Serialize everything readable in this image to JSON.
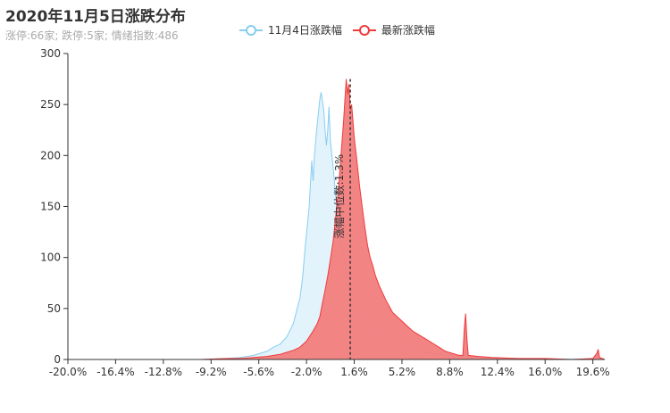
{
  "title": "2020年11月5日涨跌分布",
  "subtitle": "涨停:66家; 跌停:5家; 情绪指数:486",
  "colors": {
    "prev": "#87cef0",
    "prev_fill": "#dff2fb",
    "today": "#ee3b3b",
    "today_fill": "#f27d7d",
    "axis": "#333333",
    "median": "#333333"
  },
  "chart_data": {
    "type": "area",
    "title": "2020年11月5日涨跌分布",
    "xlim": [
      -20.0,
      20.5
    ],
    "ylim": [
      0,
      300
    ],
    "x_ticks": [
      "-20.0%",
      "-16.4%",
      "-12.8%",
      "-9.2%",
      "-5.6%",
      "-2.0%",
      "1.6%",
      "5.2%",
      "8.8%",
      "12.4%",
      "16.0%",
      "19.6%"
    ],
    "y_ticks": [
      0,
      50,
      100,
      150,
      200,
      250,
      300
    ],
    "legend_position": "top-center",
    "series": [
      {
        "name": "11月4日涨跌幅",
        "points": [
          [
            -20,
            0
          ],
          [
            -14,
            0
          ],
          [
            -10,
            0
          ],
          [
            -8,
            1
          ],
          [
            -7,
            2
          ],
          [
            -6,
            4
          ],
          [
            -5.5,
            6
          ],
          [
            -5,
            8
          ],
          [
            -4.5,
            12
          ],
          [
            -4,
            15
          ],
          [
            -3.5,
            22
          ],
          [
            -3,
            35
          ],
          [
            -2.8,
            45
          ],
          [
            -2.5,
            60
          ],
          [
            -2.3,
            80
          ],
          [
            -2.1,
            110
          ],
          [
            -1.8,
            150
          ],
          [
            -1.6,
            195
          ],
          [
            -1.5,
            175
          ],
          [
            -1.4,
            200
          ],
          [
            -1.2,
            230
          ],
          [
            -1.0,
            255
          ],
          [
            -0.9,
            262
          ],
          [
            -0.7,
            245
          ],
          [
            -0.6,
            225
          ],
          [
            -0.5,
            210
          ],
          [
            -0.4,
            225
          ],
          [
            -0.3,
            248
          ],
          [
            -0.2,
            215
          ],
          [
            0,
            190
          ],
          [
            0.2,
            160
          ],
          [
            0.4,
            130
          ],
          [
            0.6,
            112
          ],
          [
            0.8,
            100
          ],
          [
            1.0,
            85
          ],
          [
            1.2,
            70
          ],
          [
            1.4,
            60
          ],
          [
            1.6,
            52
          ],
          [
            2.0,
            45
          ],
          [
            2.5,
            38
          ],
          [
            3.0,
            30
          ],
          [
            3.5,
            24
          ],
          [
            4.0,
            20
          ],
          [
            4.5,
            16
          ],
          [
            5.0,
            13
          ],
          [
            5.5,
            12
          ],
          [
            6.0,
            10
          ],
          [
            7.0,
            7
          ],
          [
            8.0,
            5
          ],
          [
            9.0,
            3
          ],
          [
            9.8,
            2
          ],
          [
            10.0,
            6
          ],
          [
            10.2,
            2
          ],
          [
            11,
            1
          ],
          [
            14,
            1
          ],
          [
            20,
            0
          ]
        ]
      },
      {
        "name": "最新涨跌幅",
        "points": [
          [
            -20,
            0
          ],
          [
            -10,
            0
          ],
          [
            -8,
            1
          ],
          [
            -7,
            1
          ],
          [
            -6,
            2
          ],
          [
            -5,
            3
          ],
          [
            -4,
            5
          ],
          [
            -3.5,
            7
          ],
          [
            -3,
            9
          ],
          [
            -2.5,
            12
          ],
          [
            -2,
            18
          ],
          [
            -1.5,
            28
          ],
          [
            -1.2,
            35
          ],
          [
            -1.0,
            42
          ],
          [
            -0.8,
            55
          ],
          [
            -0.6,
            68
          ],
          [
            -0.4,
            82
          ],
          [
            -0.2,
            98
          ],
          [
            0,
            115
          ],
          [
            0.2,
            140
          ],
          [
            0.4,
            165
          ],
          [
            0.6,
            200
          ],
          [
            0.8,
            235
          ],
          [
            0.9,
            255
          ],
          [
            1.0,
            275
          ],
          [
            1.1,
            260
          ],
          [
            1.2,
            270
          ],
          [
            1.3,
            245
          ],
          [
            1.4,
            250
          ],
          [
            1.5,
            235
          ],
          [
            1.6,
            218
          ],
          [
            1.8,
            195
          ],
          [
            2.0,
            170
          ],
          [
            2.2,
            150
          ],
          [
            2.4,
            130
          ],
          [
            2.6,
            112
          ],
          [
            2.8,
            100
          ],
          [
            3.0,
            92
          ],
          [
            3.2,
            82
          ],
          [
            3.5,
            72
          ],
          [
            4.0,
            58
          ],
          [
            4.5,
            46
          ],
          [
            5.0,
            40
          ],
          [
            5.5,
            34
          ],
          [
            6.0,
            28
          ],
          [
            6.5,
            24
          ],
          [
            7.0,
            20
          ],
          [
            7.5,
            16
          ],
          [
            8.0,
            12
          ],
          [
            8.5,
            8
          ],
          [
            9.0,
            6
          ],
          [
            9.5,
            4
          ],
          [
            9.8,
            4
          ],
          [
            9.9,
            30
          ],
          [
            10.0,
            45
          ],
          [
            10.1,
            20
          ],
          [
            10.2,
            4
          ],
          [
            11,
            3
          ],
          [
            12,
            2
          ],
          [
            14,
            1
          ],
          [
            16,
            1
          ],
          [
            18,
            0
          ],
          [
            19.6,
            1
          ],
          [
            19.9,
            6
          ],
          [
            20.0,
            10
          ],
          [
            20.1,
            2
          ],
          [
            20.5,
            0
          ]
        ]
      }
    ],
    "median": {
      "x": 1.3,
      "label": "涨幅中位数:1.3%"
    }
  }
}
